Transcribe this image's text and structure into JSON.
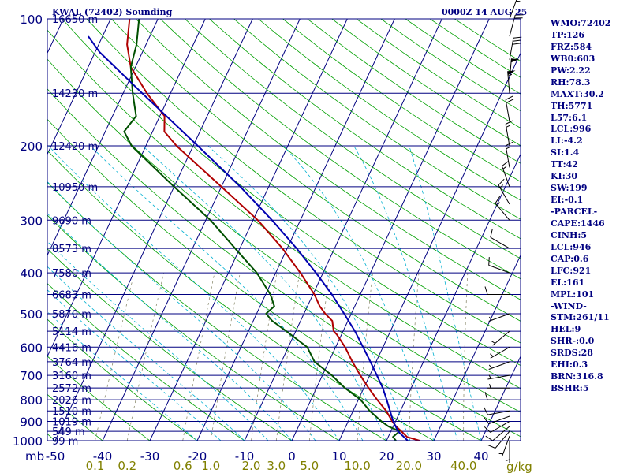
{
  "chart_data": {
    "type": "line",
    "title": "KWAL (72402) Sounding",
    "valid_time": "0000Z 14 AUG 25",
    "y_axis": {
      "label": "mb",
      "scale": "log",
      "range": [
        1000,
        100
      ],
      "tick_labels": [
        "100",
        "200",
        "300",
        "400",
        "500",
        "600",
        "700",
        "800",
        "900",
        "1000"
      ],
      "ticks": [
        100,
        200,
        300,
        400,
        500,
        600,
        700,
        800,
        900,
        1000
      ]
    },
    "x_axis": {
      "range": [
        -50,
        50
      ],
      "tick_labels": [
        "-50",
        "-40",
        "-30",
        "-20",
        "-10",
        "0",
        "10",
        "20",
        "30",
        "40"
      ],
      "ticks": [
        -50,
        -40,
        -30,
        -20,
        -10,
        0,
        10,
        20,
        30,
        40
      ],
      "skew": "skew-T"
    },
    "mixing_ratio_axis": {
      "label": "g/kg",
      "values": [
        0.1,
        0.2,
        0.6,
        1.0,
        2.0,
        3.0,
        5.0,
        10.0,
        20.0,
        40.0
      ],
      "tick_labels": [
        "0.1",
        "0.2",
        "0.6",
        "1.0",
        "2.0",
        "3.0",
        "5.0",
        "10.0",
        "20.0",
        "40.0"
      ]
    },
    "height_labels": [
      {
        "p": 100,
        "label": "16650 m"
      },
      {
        "p": 150,
        "label": "14230 m"
      },
      {
        "p": 200,
        "label": "12420 m"
      },
      {
        "p": 250,
        "label": "10950 m"
      },
      {
        "p": 300,
        "label": "9690 m"
      },
      {
        "p": 350,
        "label": "8573 m"
      },
      {
        "p": 400,
        "label": "7580 m"
      },
      {
        "p": 450,
        "label": "6683 m"
      },
      {
        "p": 500,
        "label": "5870 m"
      },
      {
        "p": 550,
        "label": "5114 m"
      },
      {
        "p": 600,
        "label": "4416 m"
      },
      {
        "p": 650,
        "label": "3764 m"
      },
      {
        "p": 700,
        "label": "3160 m"
      },
      {
        "p": 750,
        "label": "2572 m"
      },
      {
        "p": 800,
        "label": "2026 m"
      },
      {
        "p": 850,
        "label": "1510 m"
      },
      {
        "p": 900,
        "label": "1019 m"
      },
      {
        "p": 950,
        "label": "549 m"
      },
      {
        "p": 1000,
        "label": "99 m"
      }
    ],
    "series": [
      {
        "role": "temperature",
        "color": "#b00000",
        "points": [
          {
            "p": 1000,
            "t": 27.0
          },
          {
            "p": 980,
            "t": 24.0
          },
          {
            "p": 950,
            "t": 22.2
          },
          {
            "p": 925,
            "t": 20.6
          },
          {
            "p": 900,
            "t": 19.3
          },
          {
            "p": 850,
            "t": 17.0
          },
          {
            "p": 800,
            "t": 14.0
          },
          {
            "p": 750,
            "t": 11.0
          },
          {
            "p": 700,
            "t": 8.0
          },
          {
            "p": 650,
            "t": 5.0
          },
          {
            "p": 600,
            "t": 2.0
          },
          {
            "p": 560,
            "t": -1.0
          },
          {
            "p": 550,
            "t": -2.0
          },
          {
            "p": 520,
            "t": -3.3
          },
          {
            "p": 500,
            "t": -5.5
          },
          {
            "p": 480,
            "t": -7.4
          },
          {
            "p": 450,
            "t": -9.7
          },
          {
            "p": 400,
            "t": -14.8
          },
          {
            "p": 350,
            "t": -21.0
          },
          {
            "p": 300,
            "t": -29.0
          },
          {
            "p": 250,
            "t": -40.0
          },
          {
            "p": 200,
            "t": -53.5
          },
          {
            "p": 185,
            "t": -57.5
          },
          {
            "p": 170,
            "t": -59.0
          },
          {
            "p": 150,
            "t": -65.0
          },
          {
            "p": 130,
            "t": -71.0
          },
          {
            "p": 115,
            "t": -74.0
          },
          {
            "p": 100,
            "t": -76.0
          }
        ]
      },
      {
        "role": "dewpoint",
        "color": "#005000",
        "points": [
          {
            "p": 1000,
            "t": 22.0
          },
          {
            "p": 980,
            "t": 21.0
          },
          {
            "p": 950,
            "t": 21.8
          },
          {
            "p": 925,
            "t": 19.0
          },
          {
            "p": 900,
            "t": 17.0
          },
          {
            "p": 850,
            "t": 13.5
          },
          {
            "p": 800,
            "t": 10.5
          },
          {
            "p": 750,
            "t": 6.0
          },
          {
            "p": 700,
            "t": 2.0
          },
          {
            "p": 650,
            "t": -3.0
          },
          {
            "p": 600,
            "t": -6.0
          },
          {
            "p": 550,
            "t": -12.0
          },
          {
            "p": 520,
            "t": -16.0
          },
          {
            "p": 500,
            "t": -18.0
          },
          {
            "p": 480,
            "t": -17.0
          },
          {
            "p": 450,
            "t": -19.0
          },
          {
            "p": 400,
            "t": -24.0
          },
          {
            "p": 350,
            "t": -31.0
          },
          {
            "p": 300,
            "t": -39.0
          },
          {
            "p": 250,
            "t": -50.0
          },
          {
            "p": 200,
            "t": -63.0
          },
          {
            "p": 185,
            "t": -66.0
          },
          {
            "p": 170,
            "t": -65.0
          },
          {
            "p": 150,
            "t": -68.0
          },
          {
            "p": 130,
            "t": -71.0
          },
          {
            "p": 115,
            "t": -72.0
          },
          {
            "p": 100,
            "t": -74.0
          }
        ]
      },
      {
        "role": "parcel",
        "color": "#0000b0",
        "points": [
          {
            "p": 1000,
            "t": 24.5
          },
          {
            "p": 950,
            "t": 21.5
          },
          {
            "p": 900,
            "t": 19.5
          },
          {
            "p": 850,
            "t": 17.8
          },
          {
            "p": 800,
            "t": 16.0
          },
          {
            "p": 750,
            "t": 14.0
          },
          {
            "p": 700,
            "t": 11.5
          },
          {
            "p": 650,
            "t": 8.8
          },
          {
            "p": 600,
            "t": 5.8
          },
          {
            "p": 550,
            "t": 2.5
          },
          {
            "p": 500,
            "t": -1.5
          },
          {
            "p": 450,
            "t": -6.0
          },
          {
            "p": 400,
            "t": -11.5
          },
          {
            "p": 350,
            "t": -18.0
          },
          {
            "p": 300,
            "t": -26.0
          },
          {
            "p": 250,
            "t": -36.0
          },
          {
            "p": 200,
            "t": -49.0
          },
          {
            "p": 150,
            "t": -66.0
          },
          {
            "p": 120,
            "t": -79.0
          },
          {
            "p": 110,
            "t": -83.0
          }
        ]
      }
    ],
    "wind_barbs": [
      {
        "p": 1000,
        "dir": 180,
        "spd": 5
      },
      {
        "p": 975,
        "dir": 200,
        "spd": 5
      },
      {
        "p": 950,
        "dir": 220,
        "spd": 10
      },
      {
        "p": 925,
        "dir": 230,
        "spd": 10
      },
      {
        "p": 900,
        "dir": 240,
        "spd": 10
      },
      {
        "p": 875,
        "dir": 250,
        "spd": 10
      },
      {
        "p": 850,
        "dir": 260,
        "spd": 10
      },
      {
        "p": 800,
        "dir": 270,
        "spd": 10
      },
      {
        "p": 750,
        "dir": 270,
        "spd": 5
      },
      {
        "p": 700,
        "dir": 260,
        "spd": 5
      },
      {
        "p": 650,
        "dir": 250,
        "spd": 5
      },
      {
        "p": 600,
        "dir": 240,
        "spd": 5
      },
      {
        "p": 550,
        "dir": 230,
        "spd": 5
      },
      {
        "p": 500,
        "dir": 250,
        "spd": 5
      },
      {
        "p": 450,
        "dir": 270,
        "spd": 10
      },
      {
        "p": 400,
        "dir": 290,
        "spd": 10
      },
      {
        "p": 350,
        "dir": 300,
        "spd": 10
      },
      {
        "p": 300,
        "dir": 320,
        "spd": 15
      },
      {
        "p": 275,
        "dir": 330,
        "spd": 15
      },
      {
        "p": 250,
        "dir": 340,
        "spd": 15
      },
      {
        "p": 225,
        "dir": 350,
        "spd": 15
      },
      {
        "p": 200,
        "dir": 350,
        "spd": 15
      },
      {
        "p": 175,
        "dir": 350,
        "spd": 20
      },
      {
        "p": 150,
        "dir": 355,
        "spd": 55
      },
      {
        "p": 140,
        "dir": 5,
        "spd": 50
      },
      {
        "p": 125,
        "dir": 10,
        "spd": 30
      },
      {
        "p": 110,
        "dir": 15,
        "spd": 20
      },
      {
        "p": 100,
        "dir": 20,
        "spd": 15
      }
    ],
    "colors": {
      "frame": "#000080",
      "dry_adiabat": "#00a000",
      "moist_adiabat": "#00b0d0",
      "mixing_ratio": "#808060",
      "axis_text": "#000080",
      "mixing_text": "#808000"
    }
  },
  "indices": [
    "WMO:72402",
    "TP:126",
    "FRZ:584",
    "WB0:603",
    "PW:2.22",
    "RH:78.3",
    "MAXT:30.2",
    "TH:5771",
    "L57:6.1",
    "LCL:996",
    "LI:-4.2",
    "SI:1.4",
    "TT:42",
    "KI:30",
    "SW:199",
    "EI:-0.1",
    "-PARCEL-",
    "CAPE:1446",
    "CINH:5",
    "LCL:946",
    "CAP:0.6",
    "LFC:921",
    "EL:161",
    "MPL:101",
    "-WIND-",
    "STM:261/11",
    "HEL:9",
    "SHR-:0.0",
    "SRDS:28",
    "EHI:0.3",
    "BRN:316.8",
    "BSHR:5"
  ]
}
